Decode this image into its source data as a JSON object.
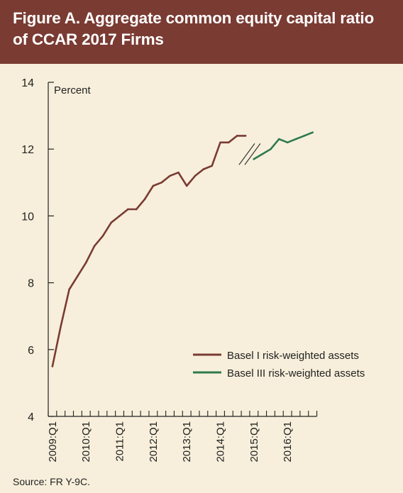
{
  "figure": {
    "title": "Figure A. Aggregate common equity capital ratio of CCAR 2017 Firms",
    "source": "Source: FR Y-9C."
  },
  "colors": {
    "header_bg": "#7a3b33",
    "panel_bg": "#f7efdb",
    "basel1": "#7a3b33",
    "basel3": "#2e7a4e"
  },
  "chart_data": {
    "type": "line",
    "title": "",
    "xlabel": "",
    "ylabel": "Percent",
    "ylim": [
      4,
      14
    ],
    "yticks": [
      4,
      6,
      8,
      10,
      12,
      14
    ],
    "quarters_start": "2009:Q1",
    "quarters_end": "2016:Q4",
    "xtick_labels": [
      "2009:Q1",
      "2010:Q1",
      "2011:Q1",
      "2012:Q1",
      "2013:Q1",
      "2014:Q1",
      "2015:Q1",
      "2016:Q1"
    ],
    "legend_position": "lower-right",
    "grid": false,
    "series": [
      {
        "name": "Basel I risk-weighted assets",
        "color": "#7a3b33",
        "x": [
          "2009:Q1",
          "2009:Q2",
          "2009:Q3",
          "2009:Q4",
          "2010:Q1",
          "2010:Q2",
          "2010:Q3",
          "2010:Q4",
          "2011:Q1",
          "2011:Q2",
          "2011:Q3",
          "2011:Q4",
          "2012:Q1",
          "2012:Q2",
          "2012:Q3",
          "2012:Q4",
          "2013:Q1",
          "2013:Q2",
          "2013:Q3",
          "2013:Q4",
          "2014:Q1",
          "2014:Q2",
          "2014:Q3",
          "2014:Q4"
        ],
        "values": [
          5.5,
          6.7,
          7.8,
          8.2,
          8.6,
          9.1,
          9.4,
          9.8,
          10.0,
          10.2,
          10.2,
          10.5,
          10.9,
          11.0,
          11.2,
          11.3,
          10.9,
          11.2,
          11.4,
          11.5,
          12.2,
          12.2,
          12.4,
          12.4
        ]
      },
      {
        "name": "Basel III risk-weighted assets",
        "color": "#2e7a4e",
        "x": [
          "2015:Q1",
          "2015:Q2",
          "2015:Q3",
          "2015:Q4",
          "2016:Q1",
          "2016:Q2",
          "2016:Q3",
          "2016:Q4"
        ],
        "values": [
          11.7,
          11.85,
          12.0,
          12.3,
          12.2,
          12.3,
          12.4,
          12.5
        ]
      }
    ],
    "annotations": [
      "break marks between 2014:Q4 and 2015:Q1"
    ]
  }
}
